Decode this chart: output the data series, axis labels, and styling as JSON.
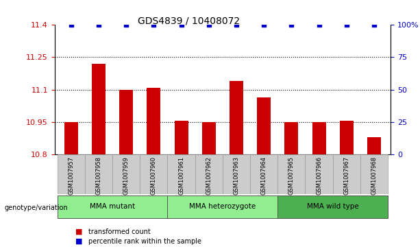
{
  "title": "GDS4839 / 10408072",
  "samples": [
    "GSM1007957",
    "GSM1007958",
    "GSM1007959",
    "GSM1007960",
    "GSM1007961",
    "GSM1007962",
    "GSM1007963",
    "GSM1007964",
    "GSM1007965",
    "GSM1007966",
    "GSM1007967",
    "GSM1007968"
  ],
  "bar_values": [
    10.95,
    11.22,
    11.1,
    11.11,
    10.955,
    10.95,
    11.14,
    11.065,
    10.95,
    10.95,
    10.955,
    10.88
  ],
  "percentile_values": [
    100,
    100,
    100,
    100,
    100,
    100,
    100,
    100,
    100,
    100,
    100,
    100
  ],
  "bar_color": "#cc0000",
  "percentile_color": "#0000cc",
  "ylim_left": [
    10.8,
    11.4
  ],
  "ylim_right": [
    0,
    100
  ],
  "yticks_left": [
    10.8,
    10.95,
    11.1,
    11.25,
    11.4
  ],
  "yticks_right": [
    0,
    25,
    50,
    75,
    100
  ],
  "ytick_labels_left": [
    "10.8",
    "10.95",
    "11.1",
    "11.25",
    "11.4"
  ],
  "ytick_labels_right": [
    "0",
    "25",
    "50",
    "75",
    "100%"
  ],
  "groups": [
    {
      "label": "MMA mutant",
      "start": 0,
      "end": 4,
      "color": "#90EE90"
    },
    {
      "label": "MMA heterozygote",
      "start": 4,
      "end": 8,
      "color": "#90EE90"
    },
    {
      "label": "MMA wild type",
      "start": 8,
      "end": 12,
      "color": "#3CB371"
    }
  ],
  "legend_items": [
    {
      "label": "transformed count",
      "color": "#cc0000",
      "marker": "s"
    },
    {
      "label": "percentile rank within the sample",
      "color": "#0000cc",
      "marker": "s"
    }
  ],
  "genotype_label": "genotype/variation",
  "grid_color": "#000000",
  "bg_color": "#cccccc",
  "plot_bg": "#ffffff",
  "bar_width": 0.5
}
